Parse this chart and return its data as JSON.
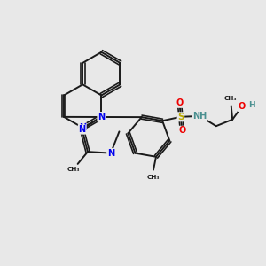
{
  "background_color": "#e8e8e8",
  "bond_color": "#1a1a1a",
  "n_color": "#0000ee",
  "o_color": "#ee0000",
  "s_color": "#bbaa00",
  "nh_color": "#4a9090",
  "figsize": [
    3.0,
    3.0
  ],
  "dpi": 100,
  "xlim": [
    0,
    10
  ],
  "ylim": [
    0,
    10
  ]
}
